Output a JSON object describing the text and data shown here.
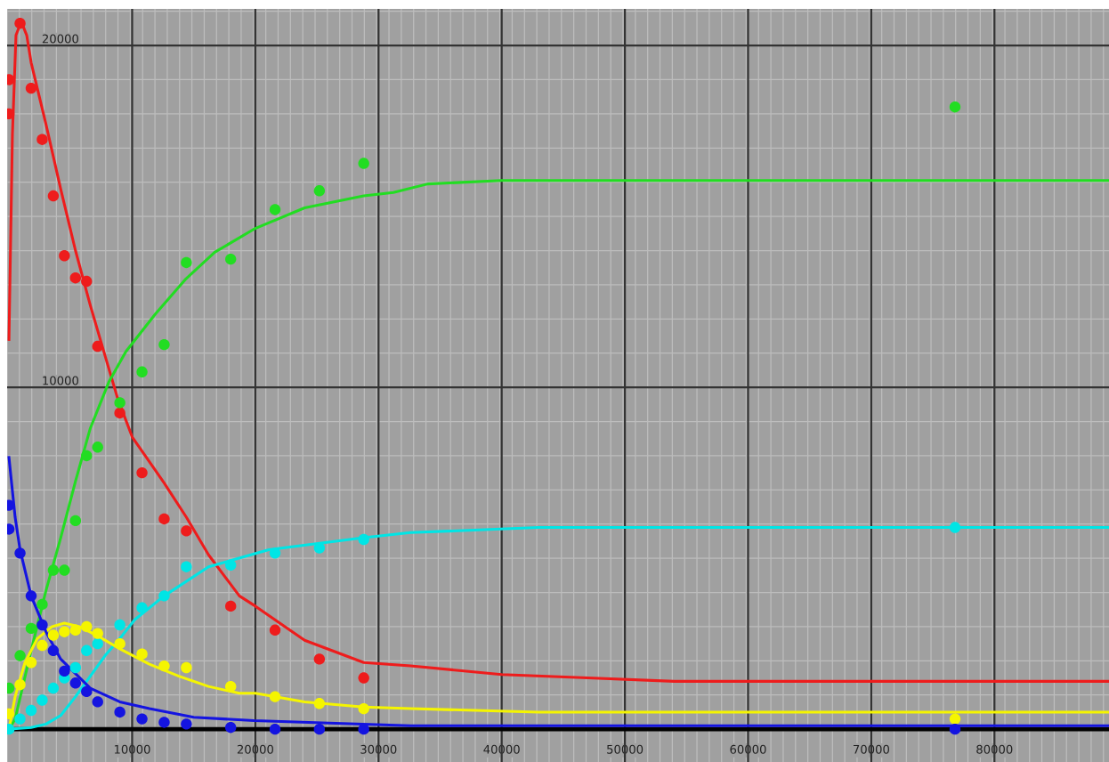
{
  "chart_data": {
    "type": "scatter",
    "marker": "circle",
    "line_style": "solid",
    "grid": true,
    "xlim": [
      -150,
      89300
    ],
    "ylim": [
      -960,
      21070
    ],
    "xticks": [
      10000,
      20000,
      30000,
      40000,
      50000,
      60000,
      70000,
      80000
    ],
    "yticks": [
      10000,
      20000
    ],
    "ref_lines": [
      {
        "axis": "y",
        "value": 0,
        "color": "#000000"
      }
    ],
    "series": [
      {
        "type": "line",
        "marker": "none",
        "color": "#ee1c1c",
        "x": [
          0,
          280,
          570,
          1000,
          1440,
          1800,
          3000,
          4200,
          5400,
          6600,
          7900,
          8800,
          10000,
          12600,
          14400,
          16200,
          18700,
          20000,
          24000,
          28800,
          32600,
          40000,
          47000,
          54000,
          60000,
          89300
        ],
        "values": [
          11400,
          17400,
          20300,
          20700,
          20300,
          19500,
          17700,
          15800,
          14000,
          12400,
          10800,
          9700,
          8550,
          7200,
          6200,
          5100,
          3900,
          3600,
          2600,
          1950,
          1850,
          1600,
          1500,
          1400,
          1400,
          1400
        ]
      },
      {
        "type": "line",
        "marker": "none",
        "color": "#22dd22",
        "x": [
          0,
          500,
          1800,
          3000,
          4200,
          5400,
          6600,
          8100,
          9500,
          11900,
          14300,
          16700,
          20000,
          24000,
          28800,
          31200,
          34000,
          40000,
          89300
        ],
        "values": [
          0,
          300,
          2300,
          4050,
          5600,
          7250,
          8800,
          10150,
          11050,
          12150,
          13150,
          13950,
          14650,
          15250,
          15600,
          15700,
          15950,
          16050,
          16050
        ]
      },
      {
        "type": "line",
        "marker": "none",
        "color": "#00e5e5",
        "x": [
          0,
          1800,
          3000,
          4200,
          5400,
          6600,
          7800,
          9000,
          10200,
          12600,
          16200,
          21100,
          28800,
          32600,
          43000,
          89300
        ],
        "values": [
          0,
          50,
          150,
          400,
          950,
          1550,
          2150,
          2650,
          3200,
          3900,
          4750,
          5250,
          5600,
          5750,
          5900,
          5900
        ]
      },
      {
        "type": "line",
        "marker": "none",
        "color": "#f5f500",
        "x": [
          0,
          500,
          1300,
          2300,
          3500,
          4500,
          5700,
          7100,
          9000,
          11400,
          13800,
          16200,
          18700,
          20000,
          24000,
          28800,
          32600,
          43000,
          89300
        ],
        "values": [
          0,
          950,
          1950,
          2650,
          3000,
          3100,
          3000,
          2750,
          2350,
          1900,
          1550,
          1250,
          1050,
          1050,
          800,
          650,
          600,
          500,
          500
        ]
      },
      {
        "type": "line",
        "marker": "none",
        "color": "#1414e0",
        "x": [
          0,
          500,
          900,
          1800,
          3000,
          4200,
          6600,
          9000,
          11400,
          15000,
          19900,
          32600,
          50000,
          89300
        ],
        "values": [
          7950,
          6200,
          5250,
          3900,
          2850,
          2050,
          1200,
          800,
          600,
          350,
          250,
          100,
          100,
          100
        ]
      },
      {
        "color": "#ee1c1c",
        "x": [
          0,
          0,
          900,
          1800,
          2700,
          3600,
          4500,
          5400,
          6300,
          7200,
          9000,
          10800,
          12600,
          14400,
          18000,
          21600,
          25200,
          28800
        ],
        "values": [
          19000,
          18000,
          20650,
          18750,
          17250,
          15600,
          13850,
          13200,
          13100,
          11200,
          9250,
          7500,
          6150,
          5800,
          3600,
          2900,
          2050,
          1500
        ]
      },
      {
        "color": "#22dd22",
        "x": [
          0,
          900,
          1800,
          2700,
          3600,
          4500,
          5400,
          6300,
          7200,
          9000,
          10800,
          12600,
          14400,
          18000,
          21600,
          25200,
          28800,
          76800
        ],
        "values": [
          1200,
          2150,
          2950,
          3650,
          4650,
          4650,
          6100,
          8000,
          8250,
          9550,
          10450,
          11250,
          13650,
          13750,
          15200,
          15750,
          16550,
          18200
        ]
      },
      {
        "color": "#00e5e5",
        "x": [
          0,
          900,
          1800,
          2700,
          3600,
          4500,
          5400,
          6300,
          7200,
          9000,
          10800,
          12600,
          14400,
          18000,
          21600,
          25200,
          28800,
          76800
        ],
        "values": [
          0,
          300,
          550,
          850,
          1200,
          1500,
          1800,
          2300,
          2500,
          3050,
          3550,
          3900,
          4750,
          4800,
          5150,
          5300,
          5550,
          5900
        ]
      },
      {
        "color": "#f5f500",
        "x": [
          0,
          900,
          1800,
          2700,
          3600,
          4500,
          5400,
          6300,
          7200,
          9000,
          10800,
          12600,
          14400,
          18000,
          21600,
          25200,
          28800,
          76800
        ],
        "values": [
          450,
          1300,
          1950,
          2450,
          2750,
          2850,
          2900,
          3000,
          2800,
          2500,
          2200,
          1850,
          1800,
          1250,
          950,
          750,
          600,
          300
        ]
      },
      {
        "color": "#1414e0",
        "x": [
          0,
          0,
          900,
          1800,
          2700,
          3600,
          4500,
          5400,
          6300,
          7200,
          9000,
          10800,
          12600,
          14400,
          18000,
          21600,
          25200,
          28800,
          76800
        ],
        "values": [
          6550,
          5850,
          5150,
          3900,
          3050,
          2300,
          1700,
          1350,
          1100,
          800,
          500,
          300,
          200,
          150,
          50,
          0,
          0,
          0,
          0
        ]
      }
    ]
  }
}
